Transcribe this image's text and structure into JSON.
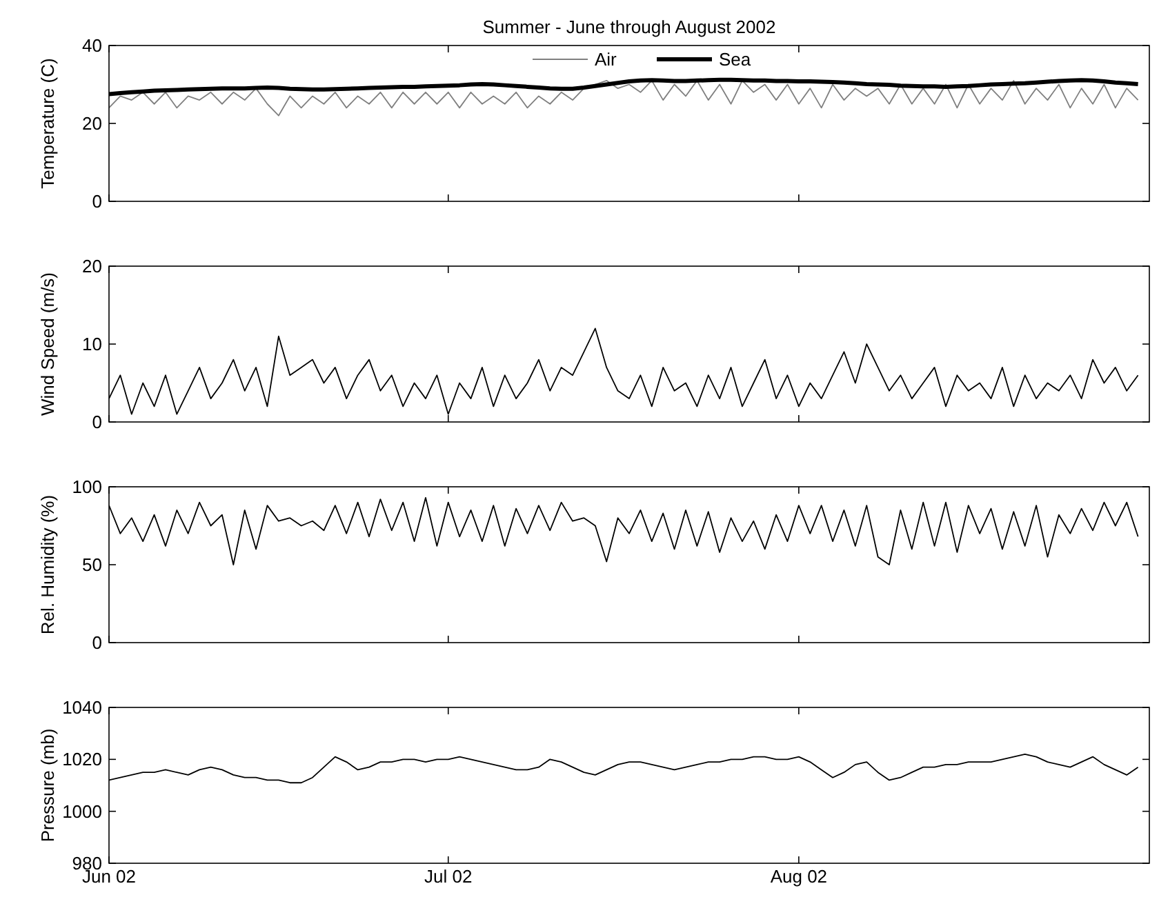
{
  "chart_data": [
    {
      "type": "line",
      "title": "Summer - June through August 2002",
      "ylabel": "Temperature (C)",
      "ylim": [
        0,
        40
      ],
      "yticks": [
        0,
        20,
        40
      ],
      "xlim": [
        "2002-06-01",
        "2002-09-01"
      ],
      "xticks": [
        {
          "value": "2002-06-01",
          "label": null
        },
        {
          "value": "2002-07-01",
          "label": null
        },
        {
          "value": "2002-08-01",
          "label": null
        }
      ],
      "tick_labels": "y",
      "legend": "top",
      "grid": false,
      "x": [
        "2002-06-01",
        "2002-06-02",
        "2002-06-03",
        "2002-06-04",
        "2002-06-05",
        "2002-06-06",
        "2002-06-07",
        "2002-06-08",
        "2002-06-09",
        "2002-06-10",
        "2002-06-11",
        "2002-06-12",
        "2002-06-13",
        "2002-06-14",
        "2002-06-15",
        "2002-06-16",
        "2002-06-17",
        "2002-06-18",
        "2002-06-19",
        "2002-06-20",
        "2002-06-21",
        "2002-06-22",
        "2002-06-23",
        "2002-06-24",
        "2002-06-25",
        "2002-06-26",
        "2002-06-27",
        "2002-06-28",
        "2002-06-29",
        "2002-06-30",
        "2002-07-01",
        "2002-07-02",
        "2002-07-03",
        "2002-07-04",
        "2002-07-05",
        "2002-07-06",
        "2002-07-07",
        "2002-07-08",
        "2002-07-09",
        "2002-07-10",
        "2002-07-11",
        "2002-07-12",
        "2002-07-13",
        "2002-07-14",
        "2002-07-15",
        "2002-07-16",
        "2002-07-17",
        "2002-07-18",
        "2002-07-19",
        "2002-07-20",
        "2002-07-21",
        "2002-07-22",
        "2002-07-23",
        "2002-07-24",
        "2002-07-25",
        "2002-07-26",
        "2002-07-27",
        "2002-07-28",
        "2002-07-29",
        "2002-07-30",
        "2002-07-31",
        "2002-08-01",
        "2002-08-02",
        "2002-08-03",
        "2002-08-04",
        "2002-08-05",
        "2002-08-06",
        "2002-08-07",
        "2002-08-08",
        "2002-08-09",
        "2002-08-10",
        "2002-08-11",
        "2002-08-12",
        "2002-08-13",
        "2002-08-14",
        "2002-08-15",
        "2002-08-16",
        "2002-08-17",
        "2002-08-18",
        "2002-08-19",
        "2002-08-20",
        "2002-08-21",
        "2002-08-22",
        "2002-08-23",
        "2002-08-24",
        "2002-08-25",
        "2002-08-26",
        "2002-08-27",
        "2002-08-28",
        "2002-08-29",
        "2002-08-30",
        "2002-08-31"
      ],
      "series": [
        {
          "name": "Air",
          "color": "#808080",
          "values": [
            24,
            27,
            26,
            28,
            25,
            28,
            24,
            27,
            26,
            28,
            25,
            28,
            26,
            29,
            25,
            22,
            27,
            24,
            27,
            25,
            28,
            24,
            27,
            25,
            28,
            24,
            28,
            25,
            28,
            25,
            28,
            24,
            28,
            25,
            27,
            25,
            28,
            24,
            27,
            25,
            28,
            26,
            29,
            30,
            31,
            29,
            30,
            28,
            31,
            26,
            30,
            27,
            31,
            26,
            30,
            25,
            31,
            28,
            30,
            26,
            30,
            25,
            29,
            24,
            30,
            26,
            29,
            27,
            29,
            25,
            30,
            25,
            29,
            25,
            30,
            24,
            30,
            25,
            29,
            26,
            31,
            25,
            29,
            26,
            30,
            24,
            29,
            25,
            30,
            24,
            29,
            26
          ]
        },
        {
          "name": "Sea",
          "color": "#000000",
          "values": [
            27.5,
            27.8,
            28,
            28.2,
            28.4,
            28.5,
            28.6,
            28.7,
            28.8,
            28.9,
            29,
            29,
            29,
            29.1,
            29.2,
            29.1,
            28.9,
            28.8,
            28.7,
            28.7,
            28.8,
            28.9,
            29,
            29.1,
            29.2,
            29.3,
            29.4,
            29.4,
            29.5,
            29.6,
            29.7,
            29.8,
            30,
            30.1,
            30,
            29.8,
            29.6,
            29.4,
            29.2,
            29,
            28.9,
            28.9,
            29.2,
            29.6,
            30,
            30.4,
            30.8,
            31,
            31.1,
            31,
            30.9,
            30.9,
            31,
            31.1,
            31.2,
            31.2,
            31.1,
            31,
            31,
            30.9,
            30.9,
            30.8,
            30.8,
            30.7,
            30.6,
            30.5,
            30.3,
            30.1,
            30,
            29.9,
            29.7,
            29.6,
            29.5,
            29.5,
            29.4,
            29.5,
            29.6,
            29.8,
            30,
            30.1,
            30.2,
            30.3,
            30.5,
            30.7,
            30.9,
            31,
            31.1,
            31,
            30.8,
            30.5,
            30.3,
            30.1
          ]
        }
      ]
    },
    {
      "type": "line",
      "ylabel": "Wind Speed (m/s)",
      "ylim": [
        0,
        20
      ],
      "yticks": [
        0,
        10,
        20
      ],
      "xlim": [
        "2002-06-01",
        "2002-09-01"
      ],
      "xticks": [
        {
          "value": "2002-06-01",
          "label": null
        },
        {
          "value": "2002-07-01",
          "label": null
        },
        {
          "value": "2002-08-01",
          "label": null
        }
      ],
      "tick_labels": "y",
      "grid": false,
      "x": [
        "2002-06-01",
        "2002-06-02",
        "2002-06-03",
        "2002-06-04",
        "2002-06-05",
        "2002-06-06",
        "2002-06-07",
        "2002-06-08",
        "2002-06-09",
        "2002-06-10",
        "2002-06-11",
        "2002-06-12",
        "2002-06-13",
        "2002-06-14",
        "2002-06-15",
        "2002-06-16",
        "2002-06-17",
        "2002-06-18",
        "2002-06-19",
        "2002-06-20",
        "2002-06-21",
        "2002-06-22",
        "2002-06-23",
        "2002-06-24",
        "2002-06-25",
        "2002-06-26",
        "2002-06-27",
        "2002-06-28",
        "2002-06-29",
        "2002-06-30",
        "2002-07-01",
        "2002-07-02",
        "2002-07-03",
        "2002-07-04",
        "2002-07-05",
        "2002-07-06",
        "2002-07-07",
        "2002-07-08",
        "2002-07-09",
        "2002-07-10",
        "2002-07-11",
        "2002-07-12",
        "2002-07-13",
        "2002-07-14",
        "2002-07-15",
        "2002-07-16",
        "2002-07-17",
        "2002-07-18",
        "2002-07-19",
        "2002-07-20",
        "2002-07-21",
        "2002-07-22",
        "2002-07-23",
        "2002-07-24",
        "2002-07-25",
        "2002-07-26",
        "2002-07-27",
        "2002-07-28",
        "2002-07-29",
        "2002-07-30",
        "2002-07-31",
        "2002-08-01",
        "2002-08-02",
        "2002-08-03",
        "2002-08-04",
        "2002-08-05",
        "2002-08-06",
        "2002-08-07",
        "2002-08-08",
        "2002-08-09",
        "2002-08-10",
        "2002-08-11",
        "2002-08-12",
        "2002-08-13",
        "2002-08-14",
        "2002-08-15",
        "2002-08-16",
        "2002-08-17",
        "2002-08-18",
        "2002-08-19",
        "2002-08-20",
        "2002-08-21",
        "2002-08-22",
        "2002-08-23",
        "2002-08-24",
        "2002-08-25",
        "2002-08-26",
        "2002-08-27",
        "2002-08-28",
        "2002-08-29",
        "2002-08-30",
        "2002-08-31"
      ],
      "series": [
        {
          "color": "#000000",
          "values": [
            3,
            6,
            1,
            5,
            2,
            6,
            1,
            4,
            7,
            3,
            5,
            8,
            4,
            7,
            2,
            11,
            6,
            7,
            8,
            5,
            7,
            3,
            6,
            8,
            4,
            6,
            2,
            5,
            3,
            6,
            1,
            5,
            3,
            7,
            2,
            6,
            3,
            5,
            8,
            4,
            7,
            6,
            9,
            12,
            7,
            4,
            3,
            6,
            2,
            7,
            4,
            5,
            2,
            6,
            3,
            7,
            2,
            5,
            8,
            3,
            6,
            2,
            5,
            3,
            6,
            9,
            5,
            10,
            7,
            4,
            6,
            3,
            5,
            7,
            2,
            6,
            4,
            5,
            3,
            7,
            2,
            6,
            3,
            5,
            4,
            6,
            3,
            8,
            5,
            7,
            4,
            6
          ]
        }
      ]
    },
    {
      "type": "line",
      "ylabel": "Rel. Humidity (%)",
      "ylim": [
        0,
        100
      ],
      "yticks": [
        0,
        50,
        100
      ],
      "xlim": [
        "2002-06-01",
        "2002-09-01"
      ],
      "xticks": [
        {
          "value": "2002-06-01",
          "label": null
        },
        {
          "value": "2002-07-01",
          "label": null
        },
        {
          "value": "2002-08-01",
          "label": null
        }
      ],
      "tick_labels": "y",
      "grid": false,
      "x": [
        "2002-06-01",
        "2002-06-02",
        "2002-06-03",
        "2002-06-04",
        "2002-06-05",
        "2002-06-06",
        "2002-06-07",
        "2002-06-08",
        "2002-06-09",
        "2002-06-10",
        "2002-06-11",
        "2002-06-12",
        "2002-06-13",
        "2002-06-14",
        "2002-06-15",
        "2002-06-16",
        "2002-06-17",
        "2002-06-18",
        "2002-06-19",
        "2002-06-20",
        "2002-06-21",
        "2002-06-22",
        "2002-06-23",
        "2002-06-24",
        "2002-06-25",
        "2002-06-26",
        "2002-06-27",
        "2002-06-28",
        "2002-06-29",
        "2002-06-30",
        "2002-07-01",
        "2002-07-02",
        "2002-07-03",
        "2002-07-04",
        "2002-07-05",
        "2002-07-06",
        "2002-07-07",
        "2002-07-08",
        "2002-07-09",
        "2002-07-10",
        "2002-07-11",
        "2002-07-12",
        "2002-07-13",
        "2002-07-14",
        "2002-07-15",
        "2002-07-16",
        "2002-07-17",
        "2002-07-18",
        "2002-07-19",
        "2002-07-20",
        "2002-07-21",
        "2002-07-22",
        "2002-07-23",
        "2002-07-24",
        "2002-07-25",
        "2002-07-26",
        "2002-07-27",
        "2002-07-28",
        "2002-07-29",
        "2002-07-30",
        "2002-07-31",
        "2002-08-01",
        "2002-08-02",
        "2002-08-03",
        "2002-08-04",
        "2002-08-05",
        "2002-08-06",
        "2002-08-07",
        "2002-08-08",
        "2002-08-09",
        "2002-08-10",
        "2002-08-11",
        "2002-08-12",
        "2002-08-13",
        "2002-08-14",
        "2002-08-15",
        "2002-08-16",
        "2002-08-17",
        "2002-08-18",
        "2002-08-19",
        "2002-08-20",
        "2002-08-21",
        "2002-08-22",
        "2002-08-23",
        "2002-08-24",
        "2002-08-25",
        "2002-08-26",
        "2002-08-27",
        "2002-08-28",
        "2002-08-29",
        "2002-08-30",
        "2002-08-31"
      ],
      "series": [
        {
          "color": "#000000",
          "values": [
            88,
            70,
            80,
            65,
            82,
            62,
            85,
            70,
            90,
            75,
            82,
            50,
            85,
            60,
            88,
            78,
            80,
            75,
            78,
            72,
            88,
            70,
            90,
            68,
            92,
            72,
            90,
            65,
            93,
            62,
            90,
            68,
            85,
            65,
            88,
            62,
            86,
            70,
            88,
            72,
            90,
            78,
            80,
            75,
            52,
            80,
            70,
            85,
            65,
            83,
            60,
            85,
            62,
            84,
            58,
            80,
            65,
            78,
            60,
            82,
            65,
            88,
            70,
            88,
            65,
            85,
            62,
            88,
            55,
            50,
            85,
            60,
            90,
            62,
            90,
            58,
            88,
            70,
            86,
            60,
            84,
            62,
            88,
            55,
            82,
            70,
            86,
            72,
            90,
            75,
            90,
            68
          ]
        }
      ]
    },
    {
      "type": "line",
      "ylabel": "Pressure (mb)",
      "ylim": [
        980,
        1040
      ],
      "yticks": [
        980,
        1000,
        1020,
        1040
      ],
      "xlim": [
        "2002-06-01",
        "2002-09-01"
      ],
      "xticks": [
        {
          "value": "2002-06-01",
          "label": "Jun 02"
        },
        {
          "value": "2002-07-01",
          "label": "Jul 02"
        },
        {
          "value": "2002-08-01",
          "label": "Aug 02"
        }
      ],
      "grid": false,
      "x": [
        "2002-06-01",
        "2002-06-02",
        "2002-06-03",
        "2002-06-04",
        "2002-06-05",
        "2002-06-06",
        "2002-06-07",
        "2002-06-08",
        "2002-06-09",
        "2002-06-10",
        "2002-06-11",
        "2002-06-12",
        "2002-06-13",
        "2002-06-14",
        "2002-06-15",
        "2002-06-16",
        "2002-06-17",
        "2002-06-18",
        "2002-06-19",
        "2002-06-20",
        "2002-06-21",
        "2002-06-22",
        "2002-06-23",
        "2002-06-24",
        "2002-06-25",
        "2002-06-26",
        "2002-06-27",
        "2002-06-28",
        "2002-06-29",
        "2002-06-30",
        "2002-07-01",
        "2002-07-02",
        "2002-07-03",
        "2002-07-04",
        "2002-07-05",
        "2002-07-06",
        "2002-07-07",
        "2002-07-08",
        "2002-07-09",
        "2002-07-10",
        "2002-07-11",
        "2002-07-12",
        "2002-07-13",
        "2002-07-14",
        "2002-07-15",
        "2002-07-16",
        "2002-07-17",
        "2002-07-18",
        "2002-07-19",
        "2002-07-20",
        "2002-07-21",
        "2002-07-22",
        "2002-07-23",
        "2002-07-24",
        "2002-07-25",
        "2002-07-26",
        "2002-07-27",
        "2002-07-28",
        "2002-07-29",
        "2002-07-30",
        "2002-07-31",
        "2002-08-01",
        "2002-08-02",
        "2002-08-03",
        "2002-08-04",
        "2002-08-05",
        "2002-08-06",
        "2002-08-07",
        "2002-08-08",
        "2002-08-09",
        "2002-08-10",
        "2002-08-11",
        "2002-08-12",
        "2002-08-13",
        "2002-08-14",
        "2002-08-15",
        "2002-08-16",
        "2002-08-17",
        "2002-08-18",
        "2002-08-19",
        "2002-08-20",
        "2002-08-21",
        "2002-08-22",
        "2002-08-23",
        "2002-08-24",
        "2002-08-25",
        "2002-08-26",
        "2002-08-27",
        "2002-08-28",
        "2002-08-29",
        "2002-08-30",
        "2002-08-31"
      ],
      "series": [
        {
          "color": "#000000",
          "values": [
            1012,
            1013,
            1014,
            1015,
            1015,
            1016,
            1015,
            1014,
            1016,
            1017,
            1016,
            1014,
            1013,
            1013,
            1012,
            1012,
            1011,
            1011,
            1013,
            1017,
            1021,
            1019,
            1016,
            1017,
            1019,
            1019,
            1020,
            1020,
            1019,
            1020,
            1020,
            1021,
            1020,
            1019,
            1018,
            1017,
            1016,
            1016,
            1017,
            1020,
            1019,
            1017,
            1015,
            1014,
            1016,
            1018,
            1019,
            1019,
            1018,
            1017,
            1016,
            1017,
            1018,
            1019,
            1019,
            1020,
            1020,
            1021,
            1021,
            1020,
            1020,
            1021,
            1019,
            1016,
            1013,
            1015,
            1018,
            1019,
            1015,
            1012,
            1013,
            1015,
            1017,
            1017,
            1018,
            1018,
            1019,
            1019,
            1019,
            1020,
            1021,
            1022,
            1021,
            1019,
            1018,
            1017,
            1019,
            1021,
            1018,
            1016,
            1014,
            1017
          ]
        }
      ]
    }
  ]
}
